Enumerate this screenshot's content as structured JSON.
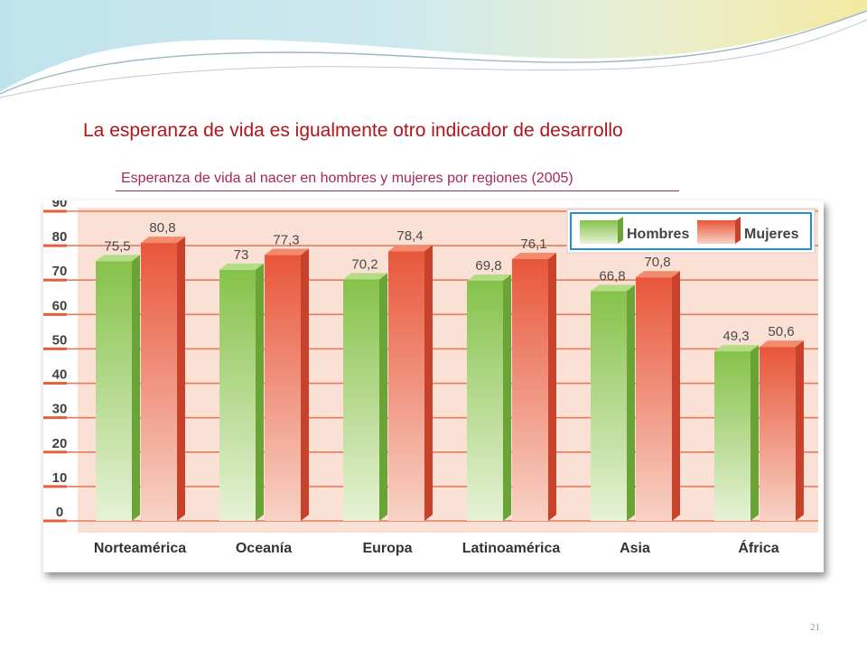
{
  "slide": {
    "title": "La esperanza de vida es igualmente otro indicador de desarrollo",
    "caption": "Esperanza de vida al nacer en hombres y mujeres por regiones (2005)",
    "page_number": "21"
  },
  "colors": {
    "title": "#b0141c",
    "caption": "#a8275a",
    "hombres": "#8cc84e",
    "mujeres": "#e8563a",
    "plot_background": "#fbe0d6",
    "gridline": "#e77a5c"
  },
  "chart_data": {
    "type": "bar",
    "title": "",
    "xlabel": "",
    "ylabel": "",
    "categories": [
      "Norteamérica",
      "Oceanía",
      "Europa",
      "Latinoamérica",
      "Asia",
      "África"
    ],
    "series": [
      {
        "name": "Hombres",
        "values": [
          75.5,
          73,
          70.2,
          69.8,
          66.8,
          49.3
        ]
      },
      {
        "name": "Mujeres",
        "values": [
          80.8,
          77.3,
          78.4,
          76.1,
          70.8,
          50.6
        ]
      }
    ],
    "value_labels": {
      "Hombres": [
        "75,5",
        "73",
        "70,2",
        "69,8",
        "66,8",
        "49,3"
      ],
      "Mujeres": [
        "80,8",
        "77,3",
        "78,4",
        "76,1",
        "70,8",
        "50,6"
      ]
    },
    "yticks": [
      "0",
      "10",
      "20",
      "30",
      "40",
      "50",
      "60",
      "70",
      "80",
      "90"
    ],
    "ylim": [
      0,
      90
    ],
    "grid": true,
    "legend_position": "top-right"
  }
}
